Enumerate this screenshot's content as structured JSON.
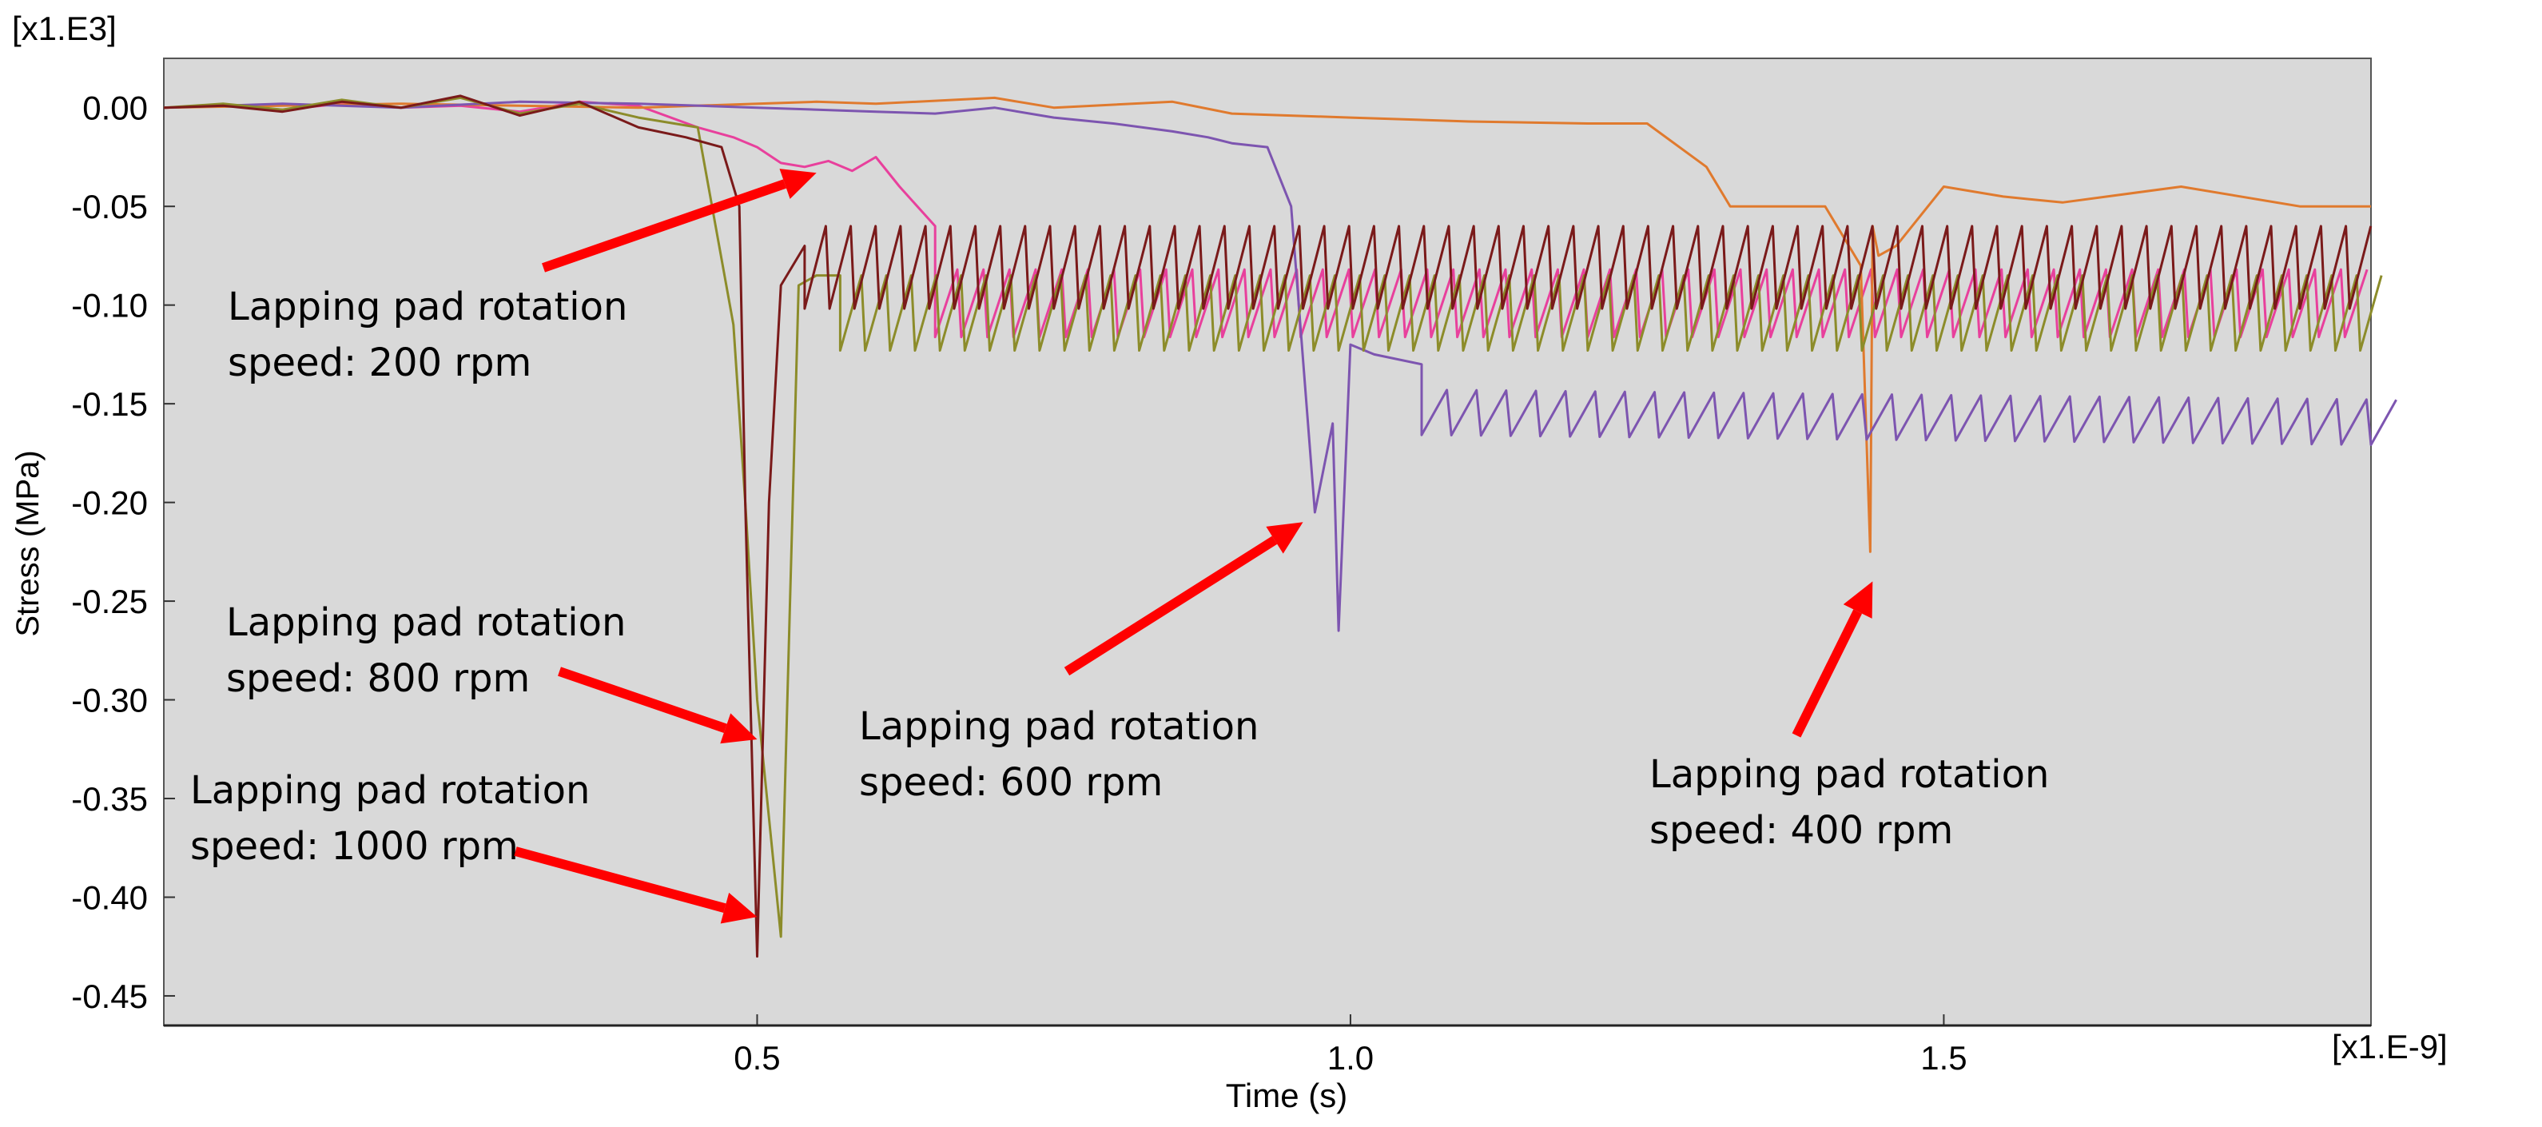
{
  "chart_data": {
    "type": "line",
    "title": "",
    "xlabel": "Time (s)",
    "ylabel": "Stress (MPa)",
    "x_multiplier": "[x1.E-9]",
    "y_multiplier": "[x1.E3]",
    "xlim": [
      0.0,
      1.86
    ],
    "ylim": [
      -0.465,
      0.025
    ],
    "x_ticks": [
      0.5,
      1.0,
      1.5
    ],
    "x_tick_labels": [
      "0.5",
      "1.0",
      "1.5"
    ],
    "y_ticks": [
      0.0,
      -0.05,
      -0.1,
      -0.15,
      -0.2,
      -0.25,
      -0.3,
      -0.35,
      -0.4,
      -0.45
    ],
    "y_tick_labels": [
      "0.00",
      "-0.05",
      "-0.10",
      "-0.15",
      "-0.20",
      "-0.25",
      "-0.30",
      "-0.35",
      "-0.40",
      "-0.45"
    ],
    "grid": false,
    "background": "#d9d9d9",
    "series": [
      {
        "name": "speed: 200 rpm",
        "color": "#e8409c",
        "shape": "spike",
        "start": {
          "x": [
            0.0,
            0.05,
            0.1,
            0.15,
            0.2,
            0.25,
            0.3,
            0.35,
            0.4,
            0.45,
            0.48,
            0.5,
            0.52,
            0.54,
            0.56,
            0.58,
            0.6,
            0.62,
            0.65
          ],
          "y": [
            0.0,
            0.001,
            -0.001,
            0.002,
            0.0,
            0.001,
            -0.002,
            0.003,
            0.001,
            -0.01,
            -0.015,
            -0.02,
            -0.028,
            -0.03,
            -0.027,
            -0.032,
            -0.025,
            -0.04,
            -0.06
          ]
        },
        "osc": {
          "x0": 0.65,
          "x1": 1.86,
          "period": 0.022,
          "base": -0.1,
          "amp": 0.018,
          "trend": 0.0
        }
      },
      {
        "name": "speed: 400 rpm",
        "color": "#e07a2e",
        "shape": "spike",
        "start": {
          "x": [
            0.0,
            0.2,
            0.4,
            0.55,
            0.6,
            0.7,
            0.75,
            0.85,
            0.9,
            1.0,
            1.1,
            1.2,
            1.25,
            1.3,
            1.32,
            1.33,
            1.35,
            1.4,
            1.43,
            1.438,
            1.44,
            1.445,
            1.46,
            1.5,
            1.55,
            1.6,
            1.7,
            1.8,
            1.86
          ],
          "y": [
            0.0,
            0.002,
            0.0,
            0.003,
            0.002,
            0.005,
            0.0,
            0.003,
            -0.003,
            -0.005,
            -0.007,
            -0.008,
            -0.008,
            -0.03,
            -0.05,
            -0.05,
            -0.05,
            -0.05,
            -0.08,
            -0.225,
            -0.06,
            -0.075,
            -0.07,
            -0.04,
            -0.045,
            -0.048,
            -0.04,
            -0.05,
            -0.05
          ]
        }
      },
      {
        "name": "speed: 600 rpm",
        "color": "#7d55b0",
        "shape": "spike",
        "start": {
          "x": [
            0.0,
            0.1,
            0.2,
            0.3,
            0.4,
            0.5,
            0.6,
            0.65,
            0.7,
            0.75,
            0.8,
            0.85,
            0.88,
            0.9,
            0.93,
            0.95,
            0.97,
            0.985,
            0.99,
            1.0,
            1.02,
            1.06
          ],
          "y": [
            0.0,
            0.002,
            0.0,
            0.003,
            0.002,
            0.0,
            -0.002,
            -0.003,
            0.0,
            -0.005,
            -0.008,
            -0.012,
            -0.015,
            -0.018,
            -0.02,
            -0.05,
            -0.205,
            -0.16,
            -0.265,
            -0.12,
            -0.125,
            -0.13
          ]
        },
        "osc": {
          "x0": 1.06,
          "x1": 1.86,
          "period": 0.025,
          "base": -0.155,
          "amp": 0.012,
          "trend": -0.005
        }
      },
      {
        "name": "speed: 800 rpm",
        "color": "#8c8c2a",
        "shape": "spike",
        "start": {
          "x": [
            0.0,
            0.05,
            0.1,
            0.15,
            0.2,
            0.25,
            0.3,
            0.35,
            0.4,
            0.45,
            0.48,
            0.49,
            0.5,
            0.52,
            0.535,
            0.55,
            0.57
          ],
          "y": [
            0.0,
            0.002,
            -0.001,
            0.004,
            0.0,
            0.005,
            -0.003,
            0.002,
            -0.005,
            -0.01,
            -0.11,
            -0.2,
            -0.3,
            -0.42,
            -0.09,
            -0.085,
            -0.085
          ]
        },
        "osc": {
          "x0": 0.57,
          "x1": 1.86,
          "period": 0.021,
          "base": -0.105,
          "amp": 0.02,
          "trend": 0.0
        }
      },
      {
        "name": "speed: 1000 rpm",
        "color": "#7a1a1a",
        "shape": "spike",
        "start": {
          "x": [
            0.0,
            0.05,
            0.1,
            0.15,
            0.2,
            0.25,
            0.3,
            0.35,
            0.4,
            0.44,
            0.47,
            0.485,
            0.49,
            0.5,
            0.51,
            0.52,
            0.54
          ],
          "y": [
            0.0,
            0.001,
            -0.002,
            0.003,
            0.0,
            0.006,
            -0.004,
            0.003,
            -0.01,
            -0.015,
            -0.02,
            -0.05,
            -0.2,
            -0.43,
            -0.2,
            -0.09,
            -0.07
          ]
        },
        "osc": {
          "x0": 0.54,
          "x1": 1.86,
          "period": 0.021,
          "base": -0.082,
          "amp": 0.022,
          "trend": 0.0
        }
      }
    ],
    "annotations": [
      {
        "line1": "Lapping pad rotation",
        "line2": "speed: 200 rpm",
        "target_x": 0.55,
        "target_y": -0.033,
        "series": "speed: 200 rpm"
      },
      {
        "line1": "Lapping pad rotation",
        "line2": "speed: 800 rpm",
        "target_x": 0.5,
        "target_y": -0.32,
        "series": "speed: 800 rpm"
      },
      {
        "line1": "Lapping pad rotation",
        "line2": "speed: 1000 rpm",
        "target_x": 0.5,
        "target_y": -0.41,
        "series": "speed: 1000 rpm"
      },
      {
        "line1": "Lapping pad rotation",
        "line2": "speed: 600 rpm",
        "target_x": 0.96,
        "target_y": -0.21,
        "series": "speed: 600 rpm"
      },
      {
        "line1": "Lapping pad rotation",
        "line2": "speed: 400 rpm",
        "target_x": 1.44,
        "target_y": -0.24,
        "series": "speed: 400 rpm"
      }
    ],
    "annotation_color": "#ff0000"
  }
}
